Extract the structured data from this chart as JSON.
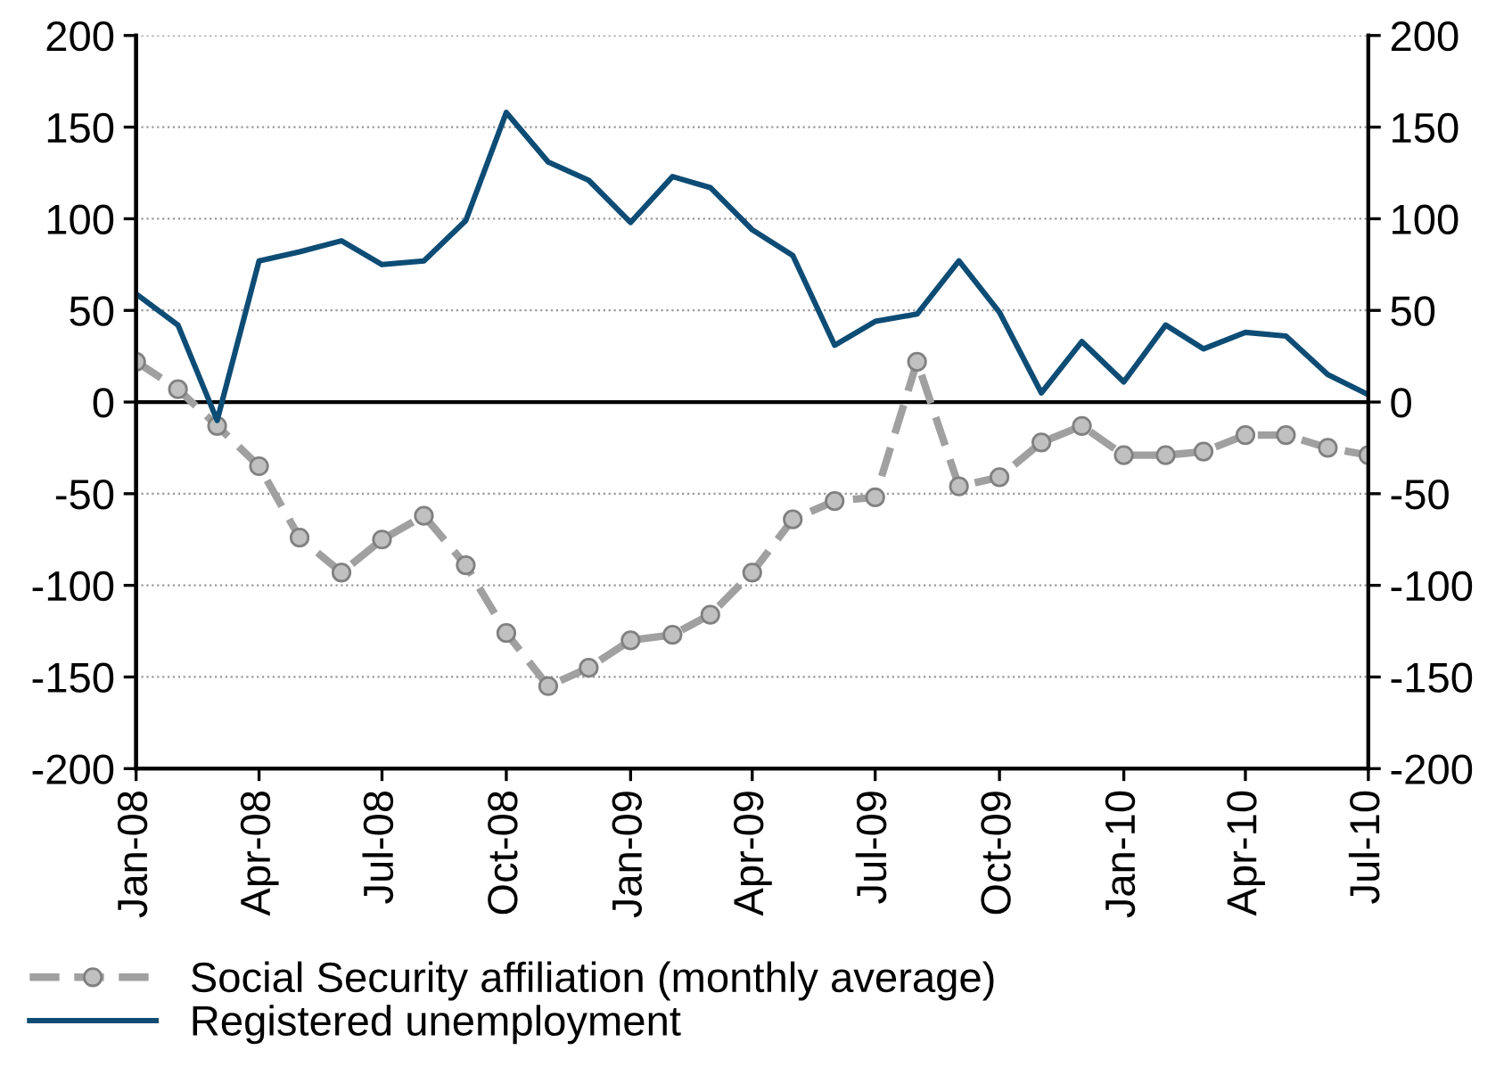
{
  "chart_data": {
    "type": "line",
    "x": [
      "2008-01",
      "2008-02",
      "2008-03",
      "2008-04",
      "2008-05",
      "2008-06",
      "2008-07",
      "2008-08",
      "2008-09",
      "2008-10",
      "2008-11",
      "2008-12",
      "2009-01",
      "2009-02",
      "2009-03",
      "2009-04",
      "2009-05",
      "2009-06",
      "2009-07",
      "2009-08",
      "2009-09",
      "2009-10",
      "2009-11",
      "2009-12",
      "2010-01",
      "2010-02",
      "2010-03",
      "2010-04",
      "2010-05",
      "2010-06",
      "2010-07"
    ],
    "series": [
      {
        "name": "Social Security affiliation (monthly average)",
        "color": "#a0a0a0",
        "marker": "circle",
        "line_style": "dashed",
        "values": [
          22,
          7,
          -13,
          -35,
          -74,
          -93,
          -75,
          -62,
          -89,
          -126,
          -155,
          -145,
          -130,
          -127,
          -116,
          -93,
          -64,
          -54,
          -52,
          22,
          -46,
          -41,
          -22,
          -13,
          -29,
          -29,
          -27,
          -18,
          -18,
          -25,
          -29
        ]
      },
      {
        "name": "Registered unemployment",
        "color": "#0d4c75",
        "marker": "none",
        "line_style": "solid",
        "values": [
          59,
          42,
          -10,
          77,
          82,
          88,
          75,
          77,
          99,
          158,
          131,
          121,
          98,
          123,
          117,
          94,
          80,
          31,
          44,
          48,
          77,
          49,
          5,
          33,
          11,
          42,
          29,
          38,
          36,
          15,
          4
        ]
      }
    ],
    "xlim": [
      "2008-01",
      "2010-07"
    ],
    "xticks": [
      {
        "value": "2008-01",
        "label": "Jan-08"
      },
      {
        "value": "2008-04",
        "label": "Apr-08"
      },
      {
        "value": "2008-07",
        "label": "Jul-08"
      },
      {
        "value": "2008-10",
        "label": "Oct-08"
      },
      {
        "value": "2009-01",
        "label": "Jan-09"
      },
      {
        "value": "2009-04",
        "label": "Apr-09"
      },
      {
        "value": "2009-07",
        "label": "Jul-09"
      },
      {
        "value": "2009-10",
        "label": "Oct-09"
      },
      {
        "value": "2010-01",
        "label": "Jan-10"
      },
      {
        "value": "2010-04",
        "label": "Apr-10"
      },
      {
        "value": "2010-07",
        "label": "Jul-10"
      }
    ],
    "ylim": [
      -200,
      200
    ],
    "yticks": [
      -200,
      -150,
      -100,
      -50,
      0,
      50,
      100,
      150,
      200
    ],
    "y2lim": [
      -200,
      200
    ],
    "y2ticks": [
      -200,
      -150,
      -100,
      -50,
      0,
      50,
      100,
      150,
      200
    ],
    "ref_lines": [
      {
        "axis": "y",
        "value": 0,
        "color": "#000000",
        "line_style": "solid"
      }
    ],
    "grid": "y",
    "legend": "bottom"
  }
}
